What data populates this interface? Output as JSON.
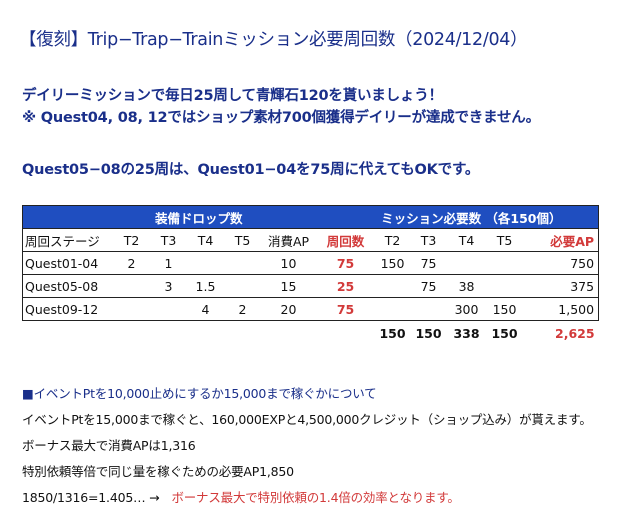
{
  "title": "【復刻】Trip−Trap−Trainミッション必要周回数（2024/12/04）",
  "intro": {
    "line1": "デイリーミッションで毎日25周して青輝石120を貰いましょう！",
    "line2": "※ Quest04, 08, 12ではショップ素材700個獲得デイリーが達成できません。",
    "line3": "Quest05−08の25周は、Quest01−04を75周に代えてもOKです。"
  },
  "table": {
    "band_left": "装備ドロップ数",
    "band_right": "ミッション必要数 （各150個）",
    "headers": [
      "周回ステージ",
      "T2",
      "T3",
      "T4",
      "T5",
      "消費AP",
      "周回数",
      "T2",
      "T3",
      "T4",
      "T5",
      "必要AP"
    ],
    "rows": [
      [
        "Quest01-04",
        "2",
        "1",
        "",
        "",
        "10",
        "75",
        "150",
        "75",
        "",
        "",
        "750"
      ],
      [
        "Quest05-08",
        "",
        "3",
        "1.5",
        "",
        "15",
        "25",
        "",
        "75",
        "38",
        "",
        "375"
      ],
      [
        "Quest09-12",
        "",
        "",
        "4",
        "2",
        "20",
        "75",
        "",
        "",
        "300",
        "150",
        "1,500"
      ]
    ],
    "totals": [
      "150",
      "150",
      "338",
      "150",
      "2,625"
    ]
  },
  "notes": {
    "n1": "■イベントPtを10,000止めにするか15,000まで稼ぐかについて",
    "n2": "イベントPtを15,000まで稼ぐと、160,000EXPと4,500,000クレジット（ショップ込み）が貰えます。",
    "n3": "ボーナス最大で消費APは1,316",
    "n4": "特別依頼等倍で同じ量を稼ぐための必要AP1,850",
    "n5a": "1850/1316=1.405… →",
    "n5b": "ボーナス最大で特別依頼の1.4倍の効率となります。"
  },
  "colors": {
    "title": "#1a2f8a",
    "band": "#1f4ec0",
    "red": "#d23a3a"
  }
}
